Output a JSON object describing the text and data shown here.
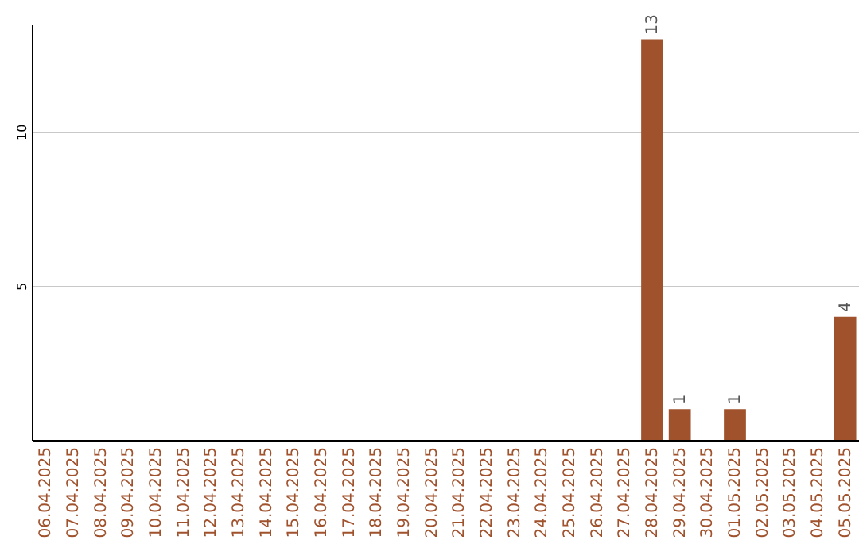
{
  "chart_data": {
    "type": "bar",
    "categories": [
      "06.04.2025",
      "07.04.2025",
      "08.04.2025",
      "09.04.2025",
      "10.04.2025",
      "11.04.2025",
      "12.04.2025",
      "13.04.2025",
      "14.04.2025",
      "15.04.2025",
      "16.04.2025",
      "17.04.2025",
      "18.04.2025",
      "19.04.2025",
      "20.04.2025",
      "21.04.2025",
      "22.04.2025",
      "23.04.2025",
      "24.04.2025",
      "25.04.2025",
      "26.04.2025",
      "27.04.2025",
      "28.04.2025",
      "29.04.2025",
      "30.04.2025",
      "01.05.2025",
      "02.05.2025",
      "03.05.2025",
      "04.05.2025",
      "05.05.2025"
    ],
    "values": [
      0,
      0,
      0,
      0,
      0,
      0,
      0,
      0,
      0,
      0,
      0,
      0,
      0,
      0,
      0,
      0,
      0,
      0,
      0,
      0,
      0,
      0,
      13,
      1,
      0,
      1,
      0,
      0,
      0,
      4
    ],
    "value_labels": [
      null,
      null,
      null,
      null,
      null,
      null,
      null,
      null,
      null,
      null,
      null,
      null,
      null,
      null,
      null,
      null,
      null,
      null,
      null,
      null,
      null,
      null,
      "13",
      "1",
      null,
      "1",
      null,
      null,
      null,
      "4"
    ],
    "color": "#a0522d",
    "ylim": [
      0,
      13.5
    ],
    "yticks": [
      5,
      10
    ],
    "grid": "y"
  }
}
